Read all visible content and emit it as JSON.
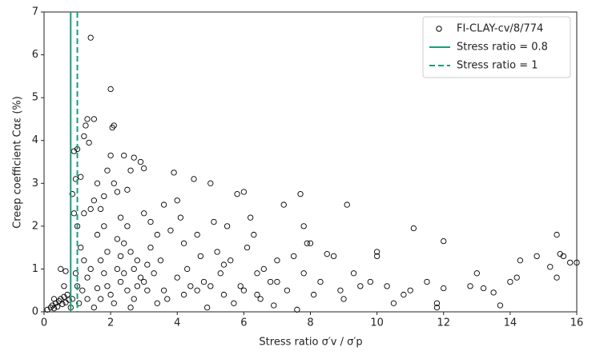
{
  "chart_data": {
    "type": "scatter",
    "xlabel": "Stress ratio σ′v / σ′p",
    "ylabel": "Creep coefficient Cαε (%)",
    "xlim": [
      0,
      16
    ],
    "xticks": [
      0,
      2,
      4,
      6,
      8,
      10,
      12,
      14,
      16
    ],
    "ylim": [
      0,
      7
    ],
    "yticks": [
      0,
      1,
      2,
      3,
      4,
      5,
      6,
      7
    ],
    "legend": "upper right",
    "series": [
      {
        "name": "FI-CLAY-cv/8/774",
        "color": "#000000",
        "x": [
          0.1,
          0.2,
          0.25,
          0.3,
          0.35,
          0.4,
          0.45,
          0.5,
          0.55,
          0.6,
          0.65,
          0.7,
          0.75,
          0.5,
          0.65,
          0.3,
          0.6,
          0.8,
          0.85,
          0.9,
          0.85,
          0.9,
          1.0,
          0.95,
          1.0,
          1.1,
          1.2,
          1.3,
          1.25,
          1.4,
          1.35,
          1.5,
          1.1,
          1.2,
          1.3,
          1.15,
          1.05,
          1.4,
          1.5,
          1.6,
          1.7,
          1.8,
          1.9,
          2.0,
          2.0,
          2.1,
          2.05,
          2.1,
          2.2,
          2.3,
          2.4,
          2.5,
          2.6,
          2.7,
          2.9,
          3.0,
          2.2,
          2.4,
          2.6,
          2.8,
          3.0,
          3.2,
          3.1,
          1.6,
          1.7,
          1.8,
          1.9,
          2.0,
          2.1,
          2.3,
          2.5,
          2.7,
          2.9,
          3.1,
          3.3,
          3.5,
          3.6,
          3.8,
          3.9,
          4.0,
          4.1,
          4.2,
          4.3,
          4.4,
          4.5,
          4.6,
          4.7,
          4.8,
          5.0,
          5.1,
          5.2,
          5.3,
          5.4,
          5.5,
          5.6,
          5.8,
          5.9,
          6.0,
          6.1,
          6.2,
          6.3,
          6.4,
          6.5,
          6.6,
          6.8,
          7.0,
          7.2,
          7.3,
          7.5,
          7.7,
          7.8,
          7.9,
          8.0,
          7.6,
          7.8,
          8.1,
          8.3,
          8.5,
          8.7,
          8.9,
          9.1,
          9.3,
          9.5,
          9.8,
          10.0,
          10.0,
          10.3,
          10.5,
          11.0,
          11.1,
          11.5,
          11.8,
          11.8,
          12.0,
          12.0,
          13.0,
          13.2,
          13.5,
          13.7,
          14.0,
          14.2,
          14.3,
          14.8,
          15.4,
          15.4,
          15.5,
          15.6,
          15.8,
          16.0,
          15.2,
          12.8,
          10.8,
          9.0,
          6.9,
          5.7,
          4.9,
          3.7,
          3.4,
          2.6,
          1.5,
          1.3,
          1.6,
          1.9,
          2.2,
          2.4,
          2.8,
          3.0,
          3.2,
          3.6,
          4.0,
          4.2,
          4.6,
          5.0,
          5.4,
          6.0,
          6.4,
          7.0,
          2.3,
          1.8,
          2.5,
          2.7,
          3.4,
          1.2,
          1.4,
          1.7,
          0.95,
          1.0
        ],
        "values": [
          0.05,
          0.1,
          0.15,
          0.08,
          0.2,
          0.12,
          0.25,
          0.3,
          0.18,
          0.35,
          0.22,
          0.4,
          0.28,
          1.0,
          0.95,
          0.3,
          0.6,
          0.1,
          0.3,
          2.3,
          2.75,
          3.75,
          3.8,
          3.1,
          2.0,
          3.15,
          4.1,
          4.5,
          4.35,
          6.4,
          3.95,
          4.5,
          1.5,
          1.2,
          0.8,
          0.5,
          0.2,
          2.4,
          2.6,
          3.0,
          2.4,
          2.7,
          3.3,
          5.2,
          3.65,
          4.35,
          4.3,
          3.0,
          2.8,
          2.2,
          3.65,
          2.85,
          3.3,
          3.6,
          3.5,
          3.35,
          1.7,
          1.6,
          1.4,
          1.2,
          2.3,
          2.1,
          1.1,
          1.8,
          1.2,
          0.9,
          0.6,
          0.4,
          0.2,
          0.7,
          0.5,
          0.3,
          0.8,
          0.5,
          0.9,
          1.2,
          2.5,
          1.9,
          3.25,
          2.6,
          2.2,
          1.6,
          1.0,
          0.6,
          3.1,
          1.8,
          1.3,
          0.7,
          3.0,
          2.1,
          1.4,
          0.9,
          0.4,
          2.0,
          1.2,
          2.75,
          0.6,
          2.8,
          1.5,
          2.2,
          1.8,
          0.9,
          0.3,
          1.0,
          0.7,
          1.2,
          2.5,
          0.5,
          1.3,
          2.75,
          2.0,
          1.6,
          1.6,
          0.05,
          0.9,
          0.4,
          0.7,
          1.35,
          1.3,
          0.5,
          2.5,
          0.9,
          0.6,
          0.7,
          1.4,
          1.3,
          0.6,
          0.2,
          0.5,
          1.95,
          0.7,
          0.2,
          0.1,
          1.65,
          0.55,
          0.9,
          0.55,
          0.45,
          0.15,
          0.7,
          0.8,
          1.2,
          1.3,
          1.8,
          0.8,
          1.35,
          1.3,
          1.15,
          1.15,
          1.05,
          0.6,
          0.4,
          0.3,
          0.15,
          0.2,
          0.1,
          0.3,
          0.2,
          0.1,
          0.1,
          0.3,
          0.55,
          1.4,
          1.0,
          0.9,
          0.6,
          0.7,
          1.5,
          0.5,
          0.8,
          0.4,
          0.5,
          0.6,
          1.1,
          0.5,
          0.4,
          0.7,
          1.3,
          2.0,
          2.0,
          1.0,
          1.8,
          2.3,
          1.0,
          0.3,
          0.9,
          0.6
        ]
      }
    ],
    "reference_lines": [
      {
        "name": "Stress ratio = 0.8",
        "x": 0.8,
        "color": "#1b9e77",
        "style": "solid"
      },
      {
        "name": "Stress ratio = 1",
        "x": 1,
        "color": "#1b9e77",
        "style": "dashed"
      }
    ]
  }
}
